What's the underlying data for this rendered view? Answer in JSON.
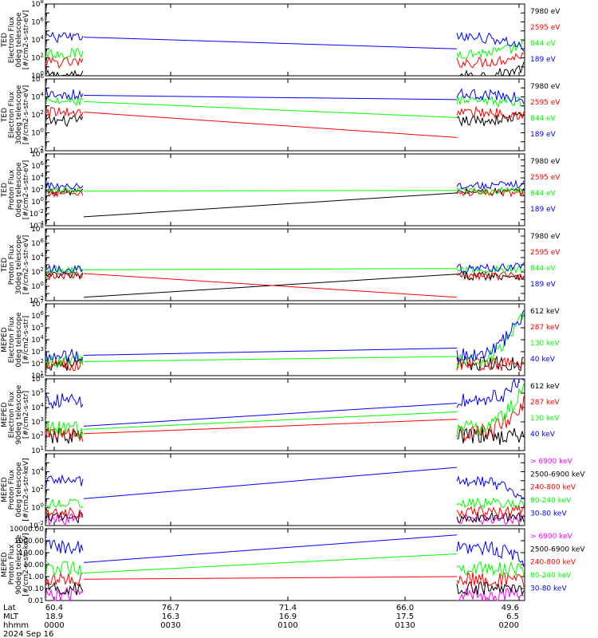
{
  "colors": {
    "black": "#000000",
    "red": "#ff0000",
    "green": "#00ff00",
    "blue": "#0000ff",
    "magenta": "#ff00ff",
    "frame": "#000000"
  },
  "chart_data": [
    {
      "type": "line",
      "ylabel": [
        "TED",
        "Electron Flux",
        "0deg telescope",
        "[#/cm2-s-str-eV]"
      ],
      "yscale": "log",
      "ylim": [
        1,
        100000000
      ],
      "yticks": [
        "10^0",
        "10^2",
        "10^4",
        "10^6",
        "10^8"
      ],
      "series": [
        {
          "name": "7980 eV",
          "color": "#000000",
          "label_color": "#000000",
          "start": 1,
          "end": 10,
          "gap_from": 1,
          "gap_to": 0
        },
        {
          "name": "2595 eV",
          "color": "#ff0000",
          "label_color": "#ff0000",
          "start": 30,
          "end": 300,
          "gap_from": 30,
          "gap_to": 0
        },
        {
          "name": "844 eV",
          "color": "#00ff00",
          "label_color": "#00ff00",
          "start": 300,
          "end": 3000,
          "gap_from": 300,
          "gap_to": 0
        },
        {
          "name": "189 eV",
          "color": "#0000ff",
          "label_color": "#0000ff",
          "start": 20000,
          "end": 1000,
          "gap_from": 20000,
          "gap_to": 1000
        }
      ]
    },
    {
      "type": "line",
      "ylabel": [
        "TED",
        "Electron Flux",
        "30deg telescope",
        "[#/cm2-s-str-eV]"
      ],
      "yscale": "log",
      "ylim": [
        0.01,
        1000000
      ],
      "yticks": [
        "10^-2",
        "10^0",
        "10^2",
        "10^4",
        "10^6"
      ],
      "series": [
        {
          "name": "7980 eV",
          "color": "#000000",
          "label_color": "#000000",
          "start": 20,
          "end": 100,
          "gap_from": 20,
          "gap_to": 0
        },
        {
          "name": "2595 eV",
          "color": "#ff0000",
          "label_color": "#ff0000",
          "start": 200,
          "end": 100,
          "gap_from": 200,
          "gap_to": 0.3
        },
        {
          "name": "844 eV",
          "color": "#00ff00",
          "label_color": "#00ff00",
          "start": 3000,
          "end": 3000,
          "gap_from": 3000,
          "gap_to": 50
        },
        {
          "name": "189 eV",
          "color": "#0000ff",
          "label_color": "#0000ff",
          "start": 20000,
          "end": 5000,
          "gap_from": 15000,
          "gap_to": 5000
        }
      ]
    },
    {
      "type": "line",
      "ylabel": [
        "TED",
        "Proton Flux",
        "0deg telescope",
        "[#/cm2-s-str-eV]"
      ],
      "yscale": "log",
      "ylim": [
        0.0001,
        100000000
      ],
      "yticks": [
        "10^-4",
        "10^-2",
        "10^0",
        "10^2",
        "10^4",
        "10^6",
        "10^8"
      ],
      "series": [
        {
          "name": "7980 eV",
          "color": "#000000",
          "label_color": "#000000",
          "start": 50,
          "end": 50,
          "gap_from": 0.003,
          "gap_to": 30
        },
        {
          "name": "2595 eV",
          "color": "#ff0000",
          "label_color": "#ff0000",
          "start": 30,
          "end": 30,
          "gap_from": 0,
          "gap_to": 0
        },
        {
          "name": "844 eV",
          "color": "#00ff00",
          "label_color": "#00ff00",
          "start": 60,
          "end": 80,
          "gap_from": 60,
          "gap_to": 80
        },
        {
          "name": "189 eV",
          "color": "#0000ff",
          "label_color": "#0000ff",
          "start": 500,
          "end": 1000,
          "gap_from": 0,
          "gap_to": 0
        }
      ]
    },
    {
      "type": "line",
      "ylabel": [
        "TED",
        "Proton Flux",
        "30deg telescope",
        "[#/cm2-s-str-eV]"
      ],
      "yscale": "log",
      "ylim": [
        0.01,
        100000000
      ],
      "yticks": [
        "10^-2",
        "10^0",
        "10^2",
        "10^4",
        "10^6",
        "10^8"
      ],
      "series": [
        {
          "name": "7980 eV",
          "color": "#000000",
          "label_color": "#000000",
          "start": 30,
          "end": 30,
          "gap_from": 0.03,
          "gap_to": 50
        },
        {
          "name": "2595 eV",
          "color": "#ff0000",
          "label_color": "#ff0000",
          "start": 30,
          "end": 30,
          "gap_from": 60,
          "gap_to": 0.03
        },
        {
          "name": "844 eV",
          "color": "#00ff00",
          "label_color": "#00ff00",
          "start": 200,
          "end": 300,
          "gap_from": 200,
          "gap_to": 300
        },
        {
          "name": "189 eV",
          "color": "#0000ff",
          "label_color": "#0000ff",
          "start": 300,
          "end": 1000,
          "gap_from": 0,
          "gap_to": 0
        }
      ]
    },
    {
      "type": "line",
      "ylabel": [
        "MEPED",
        "Electron Flux",
        "0deg telescope",
        "[#/cm2-s-str]"
      ],
      "yscale": "log",
      "ylim": [
        10,
        10000000
      ],
      "yticks": [
        "10^1",
        "10^2",
        "10^3",
        "10^4",
        "10^5",
        "10^6",
        "10^7"
      ],
      "series": [
        {
          "name": "612 keV",
          "color": "#000000",
          "label_color": "#000000",
          "start": 100,
          "end": 100,
          "gap_from": 0,
          "gap_to": 0
        },
        {
          "name": "287 keV",
          "color": "#ff0000",
          "label_color": "#ff0000",
          "start": 100,
          "end": 100,
          "gap_from": 0,
          "gap_to": 0
        },
        {
          "name": "130 keV",
          "color": "#00ff00",
          "label_color": "#00ff00",
          "start": 150,
          "end": 2000000,
          "gap_from": 150,
          "gap_to": 400
        },
        {
          "name": "40 keV",
          "color": "#0000ff",
          "label_color": "#0000ff",
          "start": 500,
          "end": 3000000,
          "gap_from": 500,
          "gap_to": 2000
        }
      ]
    },
    {
      "type": "line",
      "ylabel": [
        "MEPED",
        "Electron Flux",
        "90deg telescope",
        "[#/cm2-s-str]"
      ],
      "yscale": "log",
      "ylim": [
        10,
        1000000
      ],
      "yticks": [
        "10^1",
        "10^2",
        "10^3",
        "10^4",
        "10^5",
        "10^6"
      ],
      "series": [
        {
          "name": "612 keV",
          "color": "#000000",
          "label_color": "#000000",
          "start": 100,
          "end": 100,
          "gap_from": 0,
          "gap_to": 0
        },
        {
          "name": "287 keV",
          "color": "#ff0000",
          "label_color": "#ff0000",
          "start": 150,
          "end": 30000,
          "gap_from": 150,
          "gap_to": 1500
        },
        {
          "name": "130 keV",
          "color": "#00ff00",
          "label_color": "#00ff00",
          "start": 300,
          "end": 300000,
          "gap_from": 300,
          "gap_to": 5000
        },
        {
          "name": "40 keV",
          "color": "#0000ff",
          "label_color": "#0000ff",
          "start": 30000,
          "end": 1000000,
          "gap_from": 500,
          "gap_to": 20000
        }
      ]
    },
    {
      "type": "line",
      "ylabel": [
        "MEPED",
        "Proton Flux",
        "0deg telescope",
        "[#/cm2-s-str-keV]"
      ],
      "yscale": "log",
      "ylim": [
        0.01,
        1000000
      ],
      "yticks": [
        "10^-2",
        "10^0",
        "10^2",
        "10^4"
      ],
      "series": [
        {
          "name": "> 6900 keV",
          "color": "#ff00ff",
          "label_color": "#ff00ff",
          "start": 0.05,
          "end": 0.05,
          "gap_from": 0,
          "gap_to": 0
        },
        {
          "name": "2500-6900 keV",
          "color": "#000000",
          "label_color": "#000000",
          "start": 0.08,
          "end": 0.08,
          "gap_from": 0,
          "gap_to": 0
        },
        {
          "name": "240-800 keV",
          "color": "#ff0000",
          "label_color": "#ff0000",
          "start": 0.3,
          "end": 0.5,
          "gap_from": 0,
          "gap_to": 0
        },
        {
          "name": "80-240 keV",
          "color": "#00ff00",
          "label_color": "#00ff00",
          "start": 3,
          "end": 3,
          "gap_from": 0,
          "gap_to": 0
        },
        {
          "name": "30-80 keV",
          "color": "#0000ff",
          "label_color": "#0000ff",
          "start": 1000,
          "end": 10,
          "gap_from": 10,
          "gap_to": 30000
        }
      ]
    },
    {
      "type": "line",
      "ylabel": [
        "MEPED",
        "Proton Flux",
        "90deg telescope",
        "[#/cm2-s-str-keV]"
      ],
      "yscale": "log",
      "ylim": [
        0.01,
        10000
      ],
      "yticks": [
        "0.01",
        "0.10",
        "1.00",
        "10.00",
        "100.00",
        "1000.00",
        "10000.00"
      ],
      "series": [
        {
          "name": "> 6900 keV",
          "color": "#ff00ff",
          "label_color": "#ff00ff",
          "start": 0.03,
          "end": 0.03,
          "gap_from": 0,
          "gap_to": 0
        },
        {
          "name": "2500-6900 keV",
          "color": "#000000",
          "label_color": "#000000",
          "start": 0.1,
          "end": 0.1,
          "gap_from": 0,
          "gap_to": 0
        },
        {
          "name": "240-800 keV",
          "color": "#ff0000",
          "label_color": "#ff0000",
          "start": 0.6,
          "end": 0.4,
          "gap_from": 0.6,
          "gap_to": 1
        },
        {
          "name": "80-240 keV",
          "color": "#00ff00",
          "label_color": "#00ff00",
          "start": 5,
          "end": 3,
          "gap_from": 2,
          "gap_to": 80
        },
        {
          "name": "30-80 keV",
          "color": "#0000ff",
          "label_color": "#0000ff",
          "start": 300,
          "end": 20,
          "gap_from": 15,
          "gap_to": 3000
        }
      ]
    }
  ],
  "x_axis": {
    "row_labels": [
      "Lat",
      "MLT",
      "hhmm"
    ],
    "ticks": [
      {
        "lat": "60.4",
        "mlt": "18.9",
        "hhmm": "0000"
      },
      {
        "lat": "76.7",
        "mlt": "16.3",
        "hhmm": "0030"
      },
      {
        "lat": "71.4",
        "mlt": "16.9",
        "hhmm": "0100"
      },
      {
        "lat": "66.0",
        "mlt": "17.5",
        "hhmm": "0130"
      },
      {
        "lat": "49.6",
        "mlt": "6.5",
        "hhmm": "0200"
      }
    ],
    "date": "2024 Sep 16"
  }
}
